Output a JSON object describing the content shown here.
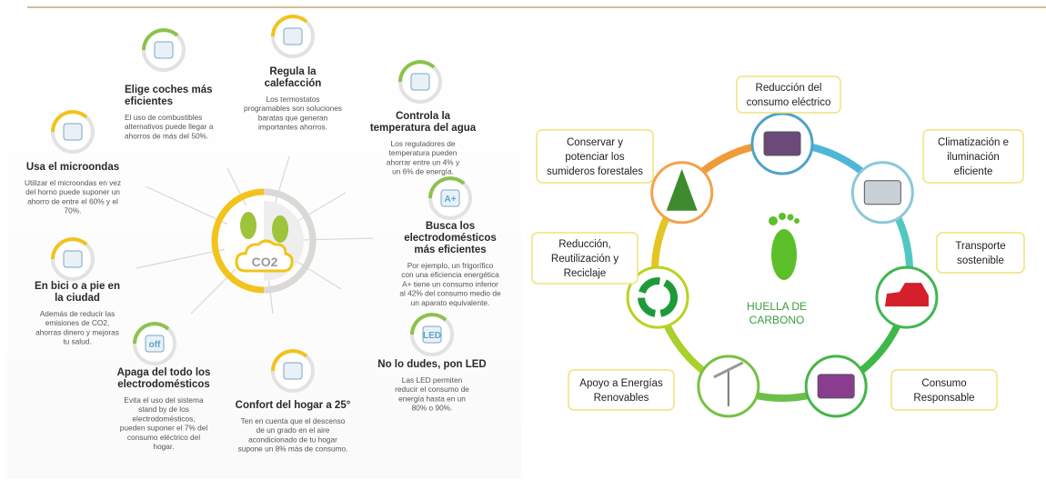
{
  "left": {
    "center": {
      "label": "CO2"
    },
    "tips": [
      {
        "title": [
          "Elige coches más",
          "eficientes"
        ],
        "description": [
          "El uso de combustibles",
          "alternativos puede llegar a",
          "ahorros de más del 50%."
        ]
      },
      {
        "title": [
          "Regula la",
          "calefacción"
        ],
        "description": [
          "Los termostatos",
          "programables son soluciones",
          "baratas que generan",
          "importantes ahorros."
        ]
      },
      {
        "title": [
          "Controla la",
          "temperatura del agua"
        ],
        "description": [
          "Los reguladores de",
          "temperatura pueden",
          "ahorrar entre un 4% y",
          "un 6% de energía."
        ]
      },
      {
        "title": [
          "Usa el microondas"
        ],
        "description": [
          "Utilizar el microondas en vez",
          "del horno puede suponer un",
          "ahorro de entre el 60% y el",
          "70%."
        ]
      },
      {
        "title": [
          "Busca los",
          "electrodomésticos",
          "más eficientes"
        ],
        "description": [
          "Por ejemplo, un frigorífico",
          "con una eficiencia energética",
          "A+  tiene un consumo inferior",
          "al 42% del consumo medio de",
          "un aparato equivalente."
        ],
        "icon_text": "A+"
      },
      {
        "title": [
          "En bici o a pie en",
          "la ciudad"
        ],
        "description": [
          "Además de reducir las",
          "emisiones de CO2,",
          "ahorras dinero y mejoras",
          "tu salud."
        ]
      },
      {
        "title": [
          "Apaga del todo los",
          "electrodomésticos"
        ],
        "description": [
          "Evita el uso del sistema",
          "stand by de los",
          "electrodomésticos,",
          "pueden suponer el 7% del",
          "consumo eléctrico del",
          "hogar."
        ],
        "icon_text": "off"
      },
      {
        "title": [
          "Confort del hogar a 25°"
        ],
        "description": [
          "Ten en cuenta que el descenso",
          "de un grado en el aire",
          "acondicionado de tu hogar",
          "supone un 8% más de consumo."
        ]
      },
      {
        "title": [
          "No lo dudes, pon LED"
        ],
        "description": [
          "Las LED  permiten",
          "reducir el consumo de",
          "energía hasta en un",
          "80% o 90%."
        ],
        "icon_text": "LED"
      }
    ]
  },
  "right": {
    "center_label": [
      "HUELLA DE",
      "CARBONO"
    ],
    "items": [
      {
        "label": [
          "Reducción del",
          "consumo eléctrico"
        ]
      },
      {
        "label": [
          "Climatización e",
          "iluminación",
          "eficiente"
        ]
      },
      {
        "label": [
          "Transporte",
          "sostenible"
        ]
      },
      {
        "label": [
          "Consumo",
          "Responsable"
        ]
      },
      {
        "label": [
          "Apoyo a Energías",
          "Renovables"
        ]
      },
      {
        "label": [
          "Reducción,",
          "Reutilización y",
          "Reciclaje"
        ]
      },
      {
        "label": [
          "Conservar y",
          "potenciar los",
          "sumideros forestales"
        ]
      }
    ]
  }
}
